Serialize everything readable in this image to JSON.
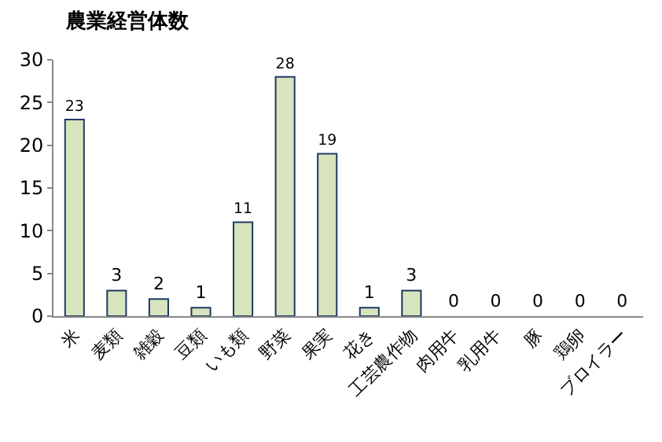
{
  "chart_data": {
    "type": "bar",
    "title": "農業経営体数",
    "categories": [
      "米",
      "麦類",
      "雑穀",
      "豆類",
      "いも類",
      "野菜",
      "果実",
      "花き",
      "工芸農作物",
      "肉用牛",
      "乳用牛",
      "豚",
      "鶏卵",
      "ブロイラー"
    ],
    "values": [
      23,
      3,
      2,
      1,
      11,
      28,
      19,
      1,
      3,
      0,
      0,
      0,
      0,
      0
    ],
    "color": "#d7e4bd",
    "ylim": [
      0,
      30
    ],
    "yticks": [
      0,
      5,
      10,
      15,
      20,
      25,
      30
    ],
    "data_labels": true
  }
}
